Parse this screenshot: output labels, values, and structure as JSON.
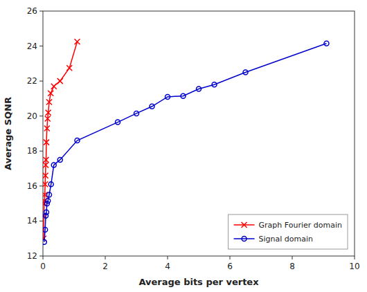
{
  "chart_data": {
    "type": "line",
    "xlabel": "Average bits per vertex",
    "ylabel": "Average SQNR",
    "series": [
      {
        "name": "Graph Fourier domain",
        "color": "#ff0000",
        "marker": "x",
        "line_style": "solid",
        "x": [
          0.02,
          0.03,
          0.04,
          0.05,
          0.06,
          0.07,
          0.08,
          0.09,
          0.1,
          0.11,
          0.13,
          0.15,
          0.17,
          0.2,
          0.25,
          0.35,
          0.55,
          0.85,
          1.1
        ],
        "values": [
          13.0,
          14.3,
          15.0,
          15.15,
          15.5,
          16.1,
          16.6,
          17.2,
          17.5,
          18.5,
          19.3,
          19.85,
          20.2,
          20.8,
          21.3,
          21.7,
          22.0,
          22.75,
          24.25
        ]
      },
      {
        "name": "Signal domain",
        "color": "#0000cc",
        "marker": "circle",
        "line_style": "solid",
        "x": [
          0.04,
          0.07,
          0.09,
          0.11,
          0.13,
          0.16,
          0.2,
          0.26,
          0.35,
          0.55,
          1.1,
          2.4,
          3.0,
          3.5,
          4.0,
          4.5,
          5.0,
          5.5,
          6.5,
          9.1
        ],
        "values": [
          12.8,
          13.5,
          14.3,
          14.5,
          15.0,
          15.15,
          15.5,
          16.1,
          17.2,
          17.5,
          18.6,
          19.65,
          20.15,
          20.55,
          21.1,
          21.15,
          21.55,
          21.8,
          22.5,
          24.15
        ]
      }
    ],
    "xlim": [
      0,
      10
    ],
    "ylim": [
      12,
      26
    ],
    "xticks": [
      0,
      2,
      4,
      6,
      8,
      10
    ],
    "yticks": [
      12,
      14,
      16,
      18,
      20,
      22,
      24,
      26
    ],
    "grid": false,
    "legend": "lower right"
  }
}
